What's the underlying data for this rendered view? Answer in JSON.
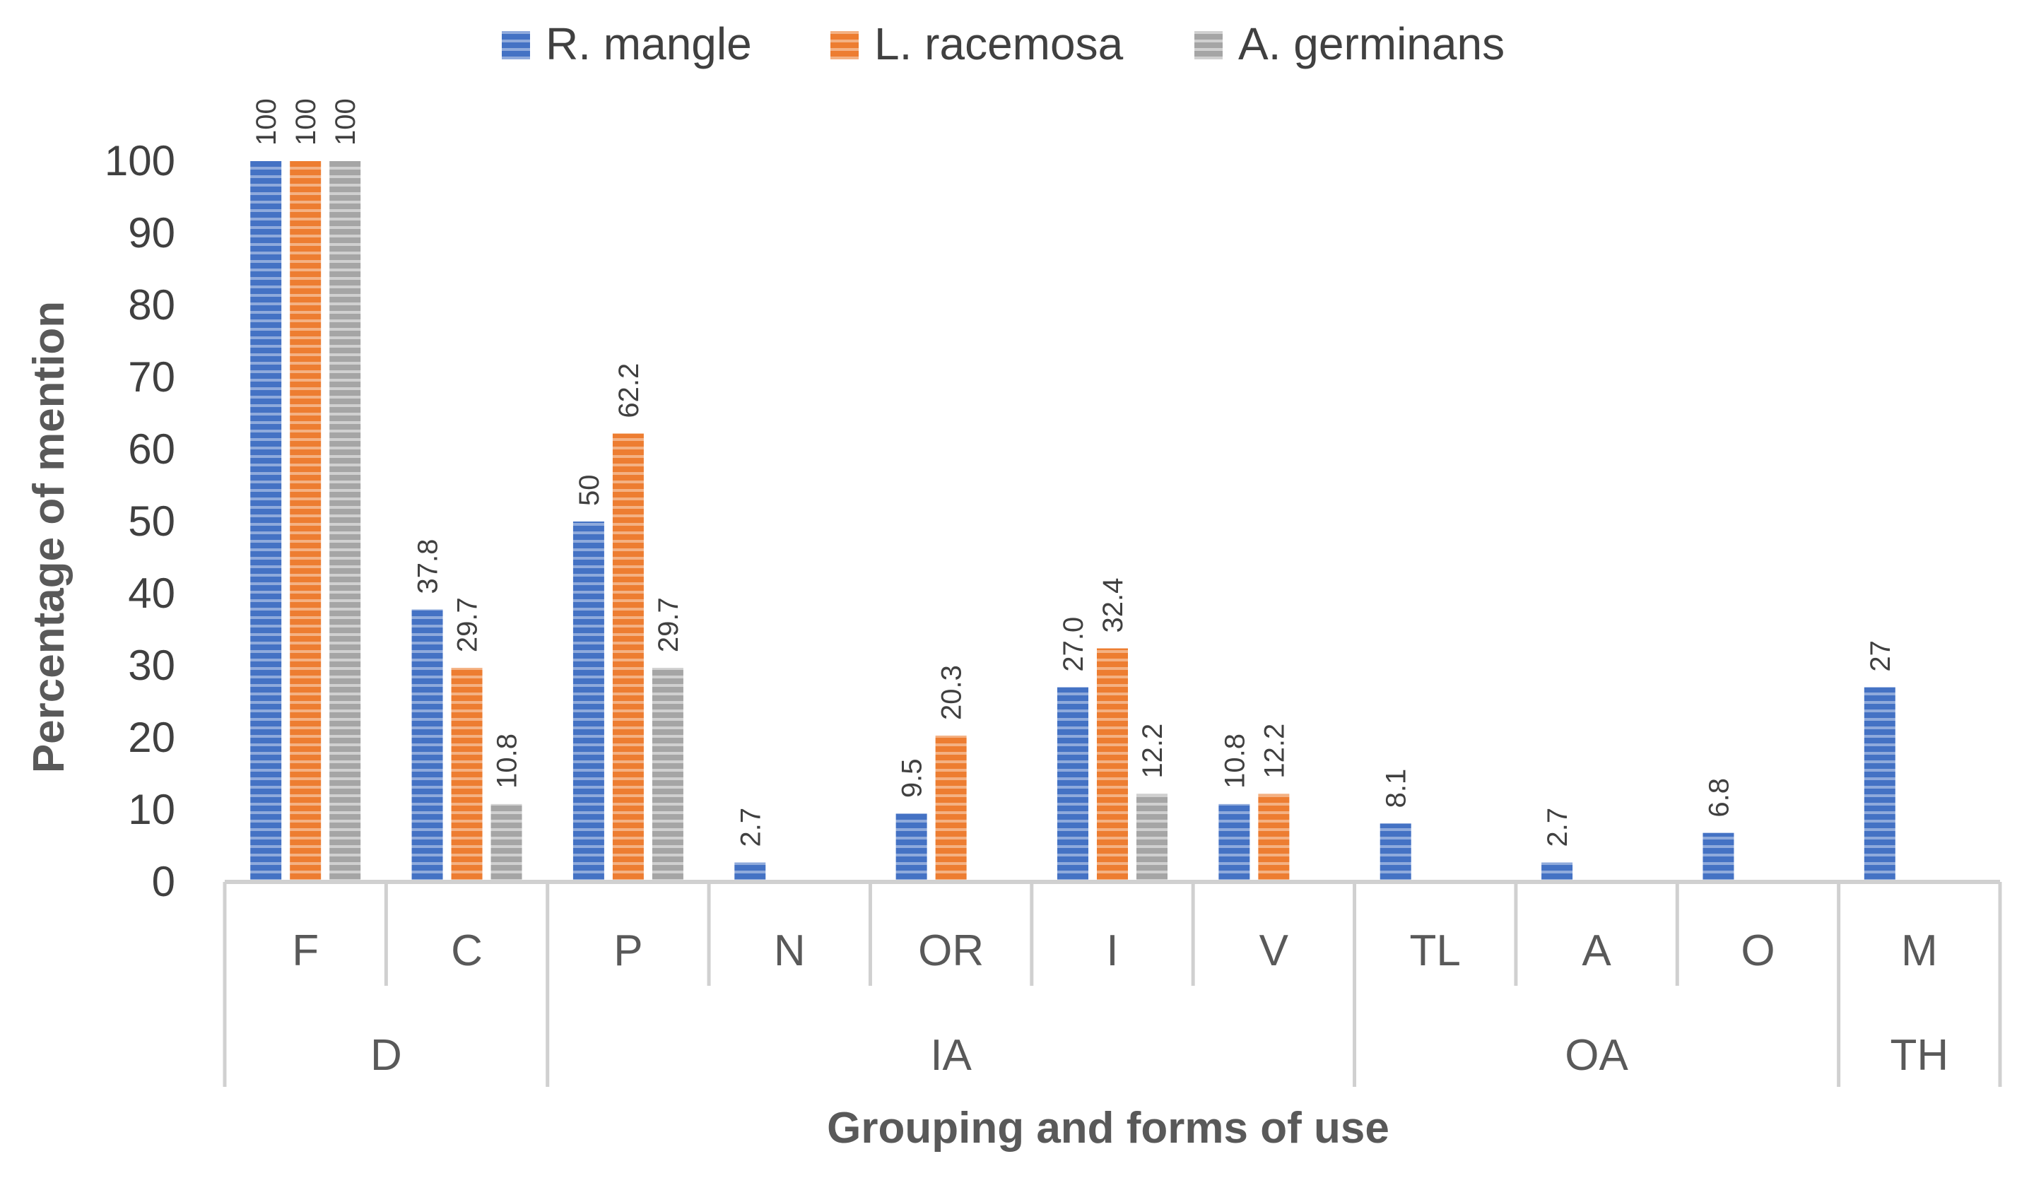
{
  "chart_data": {
    "type": "bar",
    "title": "",
    "ylabel": "Percentage of mention",
    "xlabel": "Grouping and forms of use",
    "ylim": [
      0,
      100
    ],
    "yticks": [
      0,
      10,
      20,
      30,
      40,
      50,
      60,
      70,
      80,
      90,
      100
    ],
    "categories": [
      "F",
      "C",
      "P",
      "N",
      "OR",
      "I",
      "V",
      "TL",
      "A",
      "O",
      "M"
    ],
    "groups": [
      {
        "label": "D",
        "categories": [
          "F",
          "C"
        ]
      },
      {
        "label": "IA",
        "categories": [
          "P",
          "N",
          "OR",
          "I",
          "V"
        ]
      },
      {
        "label": "OA",
        "categories": [
          "TL",
          "A",
          "O"
        ]
      },
      {
        "label": "TH",
        "categories": [
          "M"
        ]
      }
    ],
    "legend_position": "top",
    "grid": false,
    "series": [
      {
        "name": "R. mangle",
        "color": "#4472C4",
        "values": [
          100,
          37.8,
          50,
          2.7,
          9.5,
          27.0,
          10.8,
          8.1,
          2.7,
          6.8,
          27
        ],
        "labels": [
          "100",
          "37.8",
          "50",
          "2.7",
          "9.5",
          "27.0",
          "10.8",
          "8.1",
          "2.7",
          "6.8",
          "27"
        ]
      },
      {
        "name": "L. racemosa",
        "color": "#ED7D31",
        "values": [
          100,
          29.7,
          62.2,
          null,
          20.3,
          32.4,
          12.2,
          null,
          null,
          null,
          null
        ],
        "labels": [
          "100",
          "29.7",
          "62.2",
          null,
          "20.3",
          "32.4",
          "12.2",
          null,
          null,
          null,
          null
        ]
      },
      {
        "name": "A. germinans",
        "color": "#A5A5A5",
        "values": [
          100,
          10.8,
          29.7,
          null,
          null,
          12.2,
          null,
          null,
          null,
          null,
          null
        ],
        "labels": [
          "100",
          "10.8",
          "29.7",
          null,
          null,
          "12.2",
          null,
          null,
          null,
          null,
          null
        ]
      }
    ]
  }
}
